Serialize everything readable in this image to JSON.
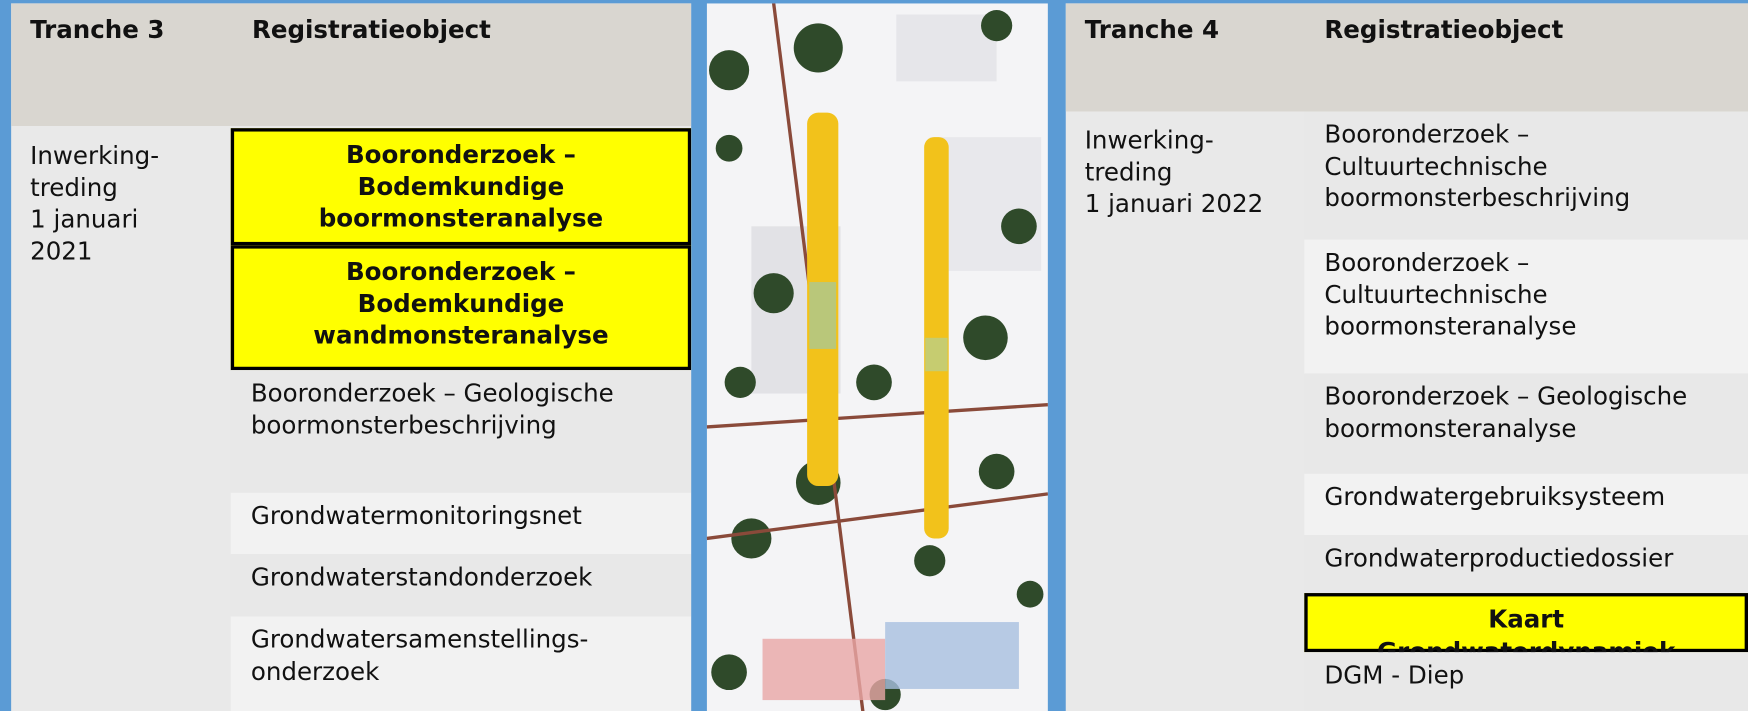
{
  "left": {
    "header": [
      "Tranche 3",
      "Registratieobject"
    ],
    "phase": "Inwerking-\ntreding\n1 januari\n2021",
    "items": [
      {
        "text": "Booronderzoek – Bodemkundige boormonsteranalyse",
        "highlight": true
      },
      {
        "text": "Booronderzoek – Bodemkundige wandmonsteranalyse",
        "highlight": true
      },
      {
        "text": "Booronderzoek – Geologische boormonsterbeschrijving",
        "highlight": false
      },
      {
        "text": "Grondwatermonitoringsnet",
        "highlight": false
      },
      {
        "text": "Grondwaterstandonderzoek",
        "highlight": false
      },
      {
        "text": "Grondwatersamenstellings-\nonderzoek",
        "highlight": false
      }
    ]
  },
  "right": {
    "header": [
      "Tranche 4",
      "Registratieobject"
    ],
    "phase": "Inwerking-\ntreding\n1 januari 2022",
    "items": [
      {
        "text": "Booronderzoek – Cultuurtechnische boormonsterbeschrijving",
        "highlight": false
      },
      {
        "text": "Booronderzoek – Cultuurtechnische boormonsteranalyse",
        "highlight": false
      },
      {
        "text": "Booronderzoek – Geologische boormonsteranalyse",
        "highlight": false
      },
      {
        "text": "Grondwatergebruiksysteem",
        "highlight": false
      },
      {
        "text": "Grondwaterproductiedossier",
        "highlight": false
      },
      {
        "text": "Kaart Grondwaterdynamiek",
        "highlight": true
      },
      {
        "text": "DGM - Diep",
        "highlight": false
      }
    ]
  }
}
